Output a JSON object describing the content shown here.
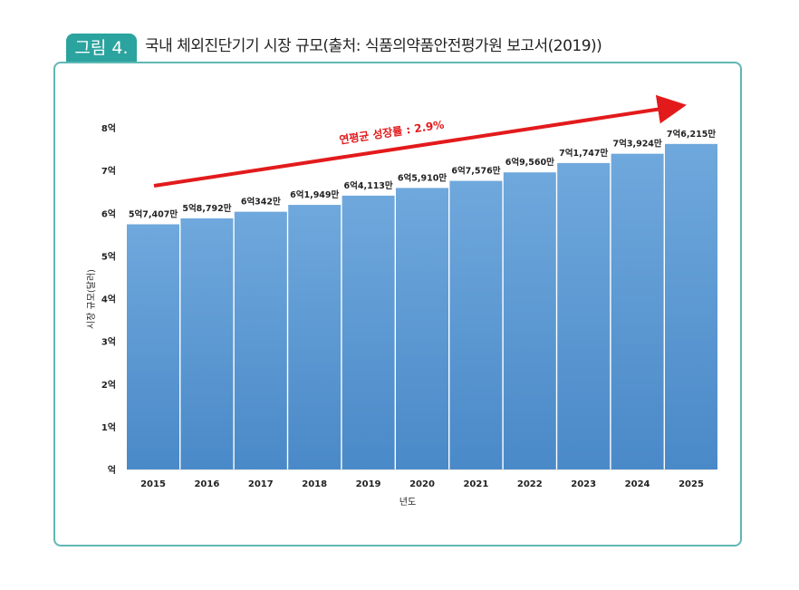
{
  "figure": {
    "label": "그림 4.",
    "title": "국내 체외진단기기 시장 규모(출처: 식품의약품안전평가원 보고서(2019))"
  },
  "chart_data": {
    "type": "bar",
    "categories": [
      "2015",
      "2016",
      "2017",
      "2018",
      "2019",
      "2020",
      "2021",
      "2022",
      "2023",
      "2024",
      "2025"
    ],
    "values": [
      5.7407,
      5.8792,
      6.0342,
      6.1949,
      6.4113,
      6.591,
      6.7576,
      6.956,
      7.1747,
      7.3924,
      7.6215
    ],
    "data_labels": [
      "5억7,407만",
      "5억8,792만",
      "6억342만",
      "6억1,949만",
      "6억4,113만",
      "6억5,910만",
      "6억7,576만",
      "6억9,560만",
      "7억1,747만",
      "7억3,924만",
      "7억6,215만"
    ],
    "unit": "억",
    "ylim": [
      0,
      8
    ],
    "yticks": [
      "억",
      "1억",
      "2억",
      "3억",
      "4억",
      "5억",
      "6억",
      "7억",
      "8억"
    ],
    "xlabel": "년도",
    "ylabel": "시장 규모(달러)",
    "annotation": "연평균 성장률 : 2.9%",
    "grid": false,
    "colors": {
      "bar": "#5b9bd5",
      "arrow": "#e31a1c",
      "frame": "#5fb8b4",
      "tab": "#2ba39f"
    }
  }
}
